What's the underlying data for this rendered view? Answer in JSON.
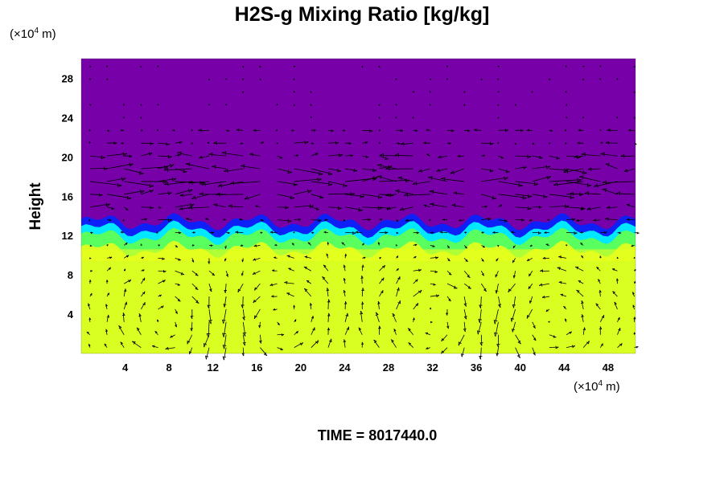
{
  "chart_data": {
    "type": "heatmap",
    "title": "H2S-g Mixing Ratio [kg/kg]",
    "ylabel": "Height",
    "xlabel": "",
    "x_unit_prefix": "(×10",
    "unit_exponent": "4",
    "unit_suffix": " m)",
    "x_ticks": [
      4,
      8,
      12,
      16,
      20,
      24,
      28,
      32,
      36,
      40,
      44,
      48
    ],
    "y_ticks": [
      4,
      8,
      12,
      16,
      20,
      24,
      28
    ],
    "xlim": [
      0,
      50.5
    ],
    "ylim": [
      0,
      30
    ],
    "time_text": "TIME = 8017440.0",
    "colors": {
      "upper": "#7700a8",
      "blue_band": "#0024ff",
      "cyan_band": "#00e8ff",
      "green_band": "#58ff5e",
      "lower": "#d9ff22",
      "lower_light": "#e8ff1a",
      "vectors": "#000000"
    },
    "fields": {
      "interface_height": 12.5,
      "upper_value_region": "above ~13",
      "lower_value_region": "below ~12"
    },
    "vector_field": {
      "shown": true,
      "vortex_centers_x": [
        8,
        18,
        32,
        43
      ],
      "vortex_center_y": 3.5,
      "jet_height": 17.5
    },
    "grid": false
  }
}
